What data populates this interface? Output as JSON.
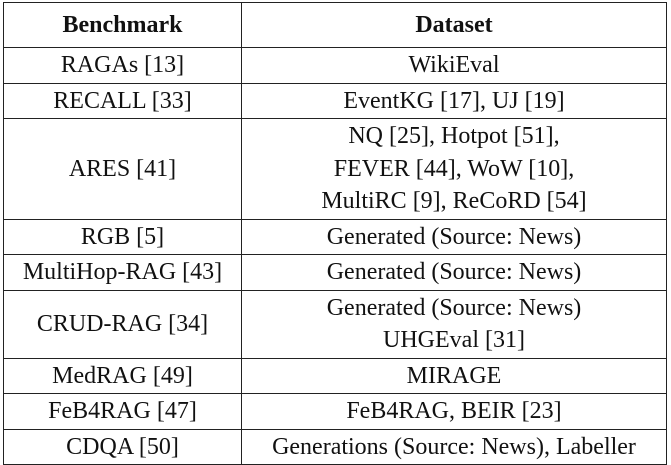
{
  "table": {
    "header": [
      "Benchmark",
      "Dataset"
    ],
    "rows": [
      {
        "benchmark": "RAGAs [13]",
        "dataset": [
          "WikiEval"
        ]
      },
      {
        "benchmark": "RECALL [33]",
        "dataset": [
          "EventKG [17], UJ [19]"
        ]
      },
      {
        "benchmark": "ARES [41]",
        "dataset": [
          "NQ [25], Hotpot [51],",
          "FEVER [44], WoW [10],",
          "MultiRC [9], ReCoRD [54]"
        ]
      },
      {
        "benchmark": "RGB [5]",
        "dataset": [
          "Generated (Source: News)"
        ]
      },
      {
        "benchmark": "MultiHop-RAG [43]",
        "dataset": [
          "Generated (Source: News)"
        ]
      },
      {
        "benchmark": "CRUD-RAG [34]",
        "dataset": [
          "Generated (Source: News)",
          "UHGEval [31]"
        ]
      },
      {
        "benchmark": "MedRAG [49]",
        "dataset": [
          "MIRAGE"
        ]
      },
      {
        "benchmark": "FeB4RAG [47]",
        "dataset": [
          "FeB4RAG, BEIR [23]"
        ]
      },
      {
        "benchmark": "CDQA [50]",
        "dataset": [
          "Generations (Source: News), Labeller"
        ]
      }
    ]
  }
}
